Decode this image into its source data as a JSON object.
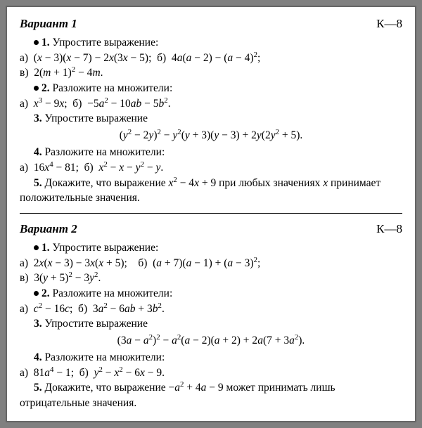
{
  "k_label": "К—8",
  "v1": {
    "title": "Вариант 1",
    "t1_head": "1. Упростите выражение:",
    "t1a": "а) (x − 3)(x − 7) − 2x(3x − 5); б) 4a(a − 2) − (a − 4)²;",
    "t1v": "в) 2(m + 1)² − 4m.",
    "t2_head": "2. Разложите на множители:",
    "t2a": "а) x³ − 9x; б) −5a² − 10ab − 5b².",
    "t3_head": "3. Упростите выражение",
    "t3_expr": "(y² − 2y)² − y²(y + 3)(y − 3) + 2y(2y² + 5).",
    "t4_head": "4. Разложите на множители:",
    "t4a": "а) 16x⁴ − 81; б) x² − x − y² − y.",
    "t5": "5. Докажите, что выражение x² − 4x + 9 при любых значениях x принимает положительные значения."
  },
  "v2": {
    "title": "Вариант 2",
    "t1_head": "1. Упростите выражение:",
    "t1a": "а) 2x(x − 3) − 3x(x + 5);    б) (a + 7)(a − 1) + (a − 3)²;",
    "t1v": "в) 3(y + 5)² − 3y².",
    "t2_head": "2. Разложите на множители:",
    "t2a": "а) c² − 16c; б) 3a² − 6ab + 3b².",
    "t3_head": "3. Упростите выражение",
    "t3_expr": "(3a − a²)² − a²(a − 2)(a + 2) + 2a(7 + 3a²).",
    "t4_head": "4. Разложите на множители:",
    "t4a": "а) 81a⁴ − 1; б) y² − x² − 6x − 9.",
    "t5": "5. Докажите, что выражение −a² + 4a − 9 может принимать лишь отрицательные значения."
  }
}
